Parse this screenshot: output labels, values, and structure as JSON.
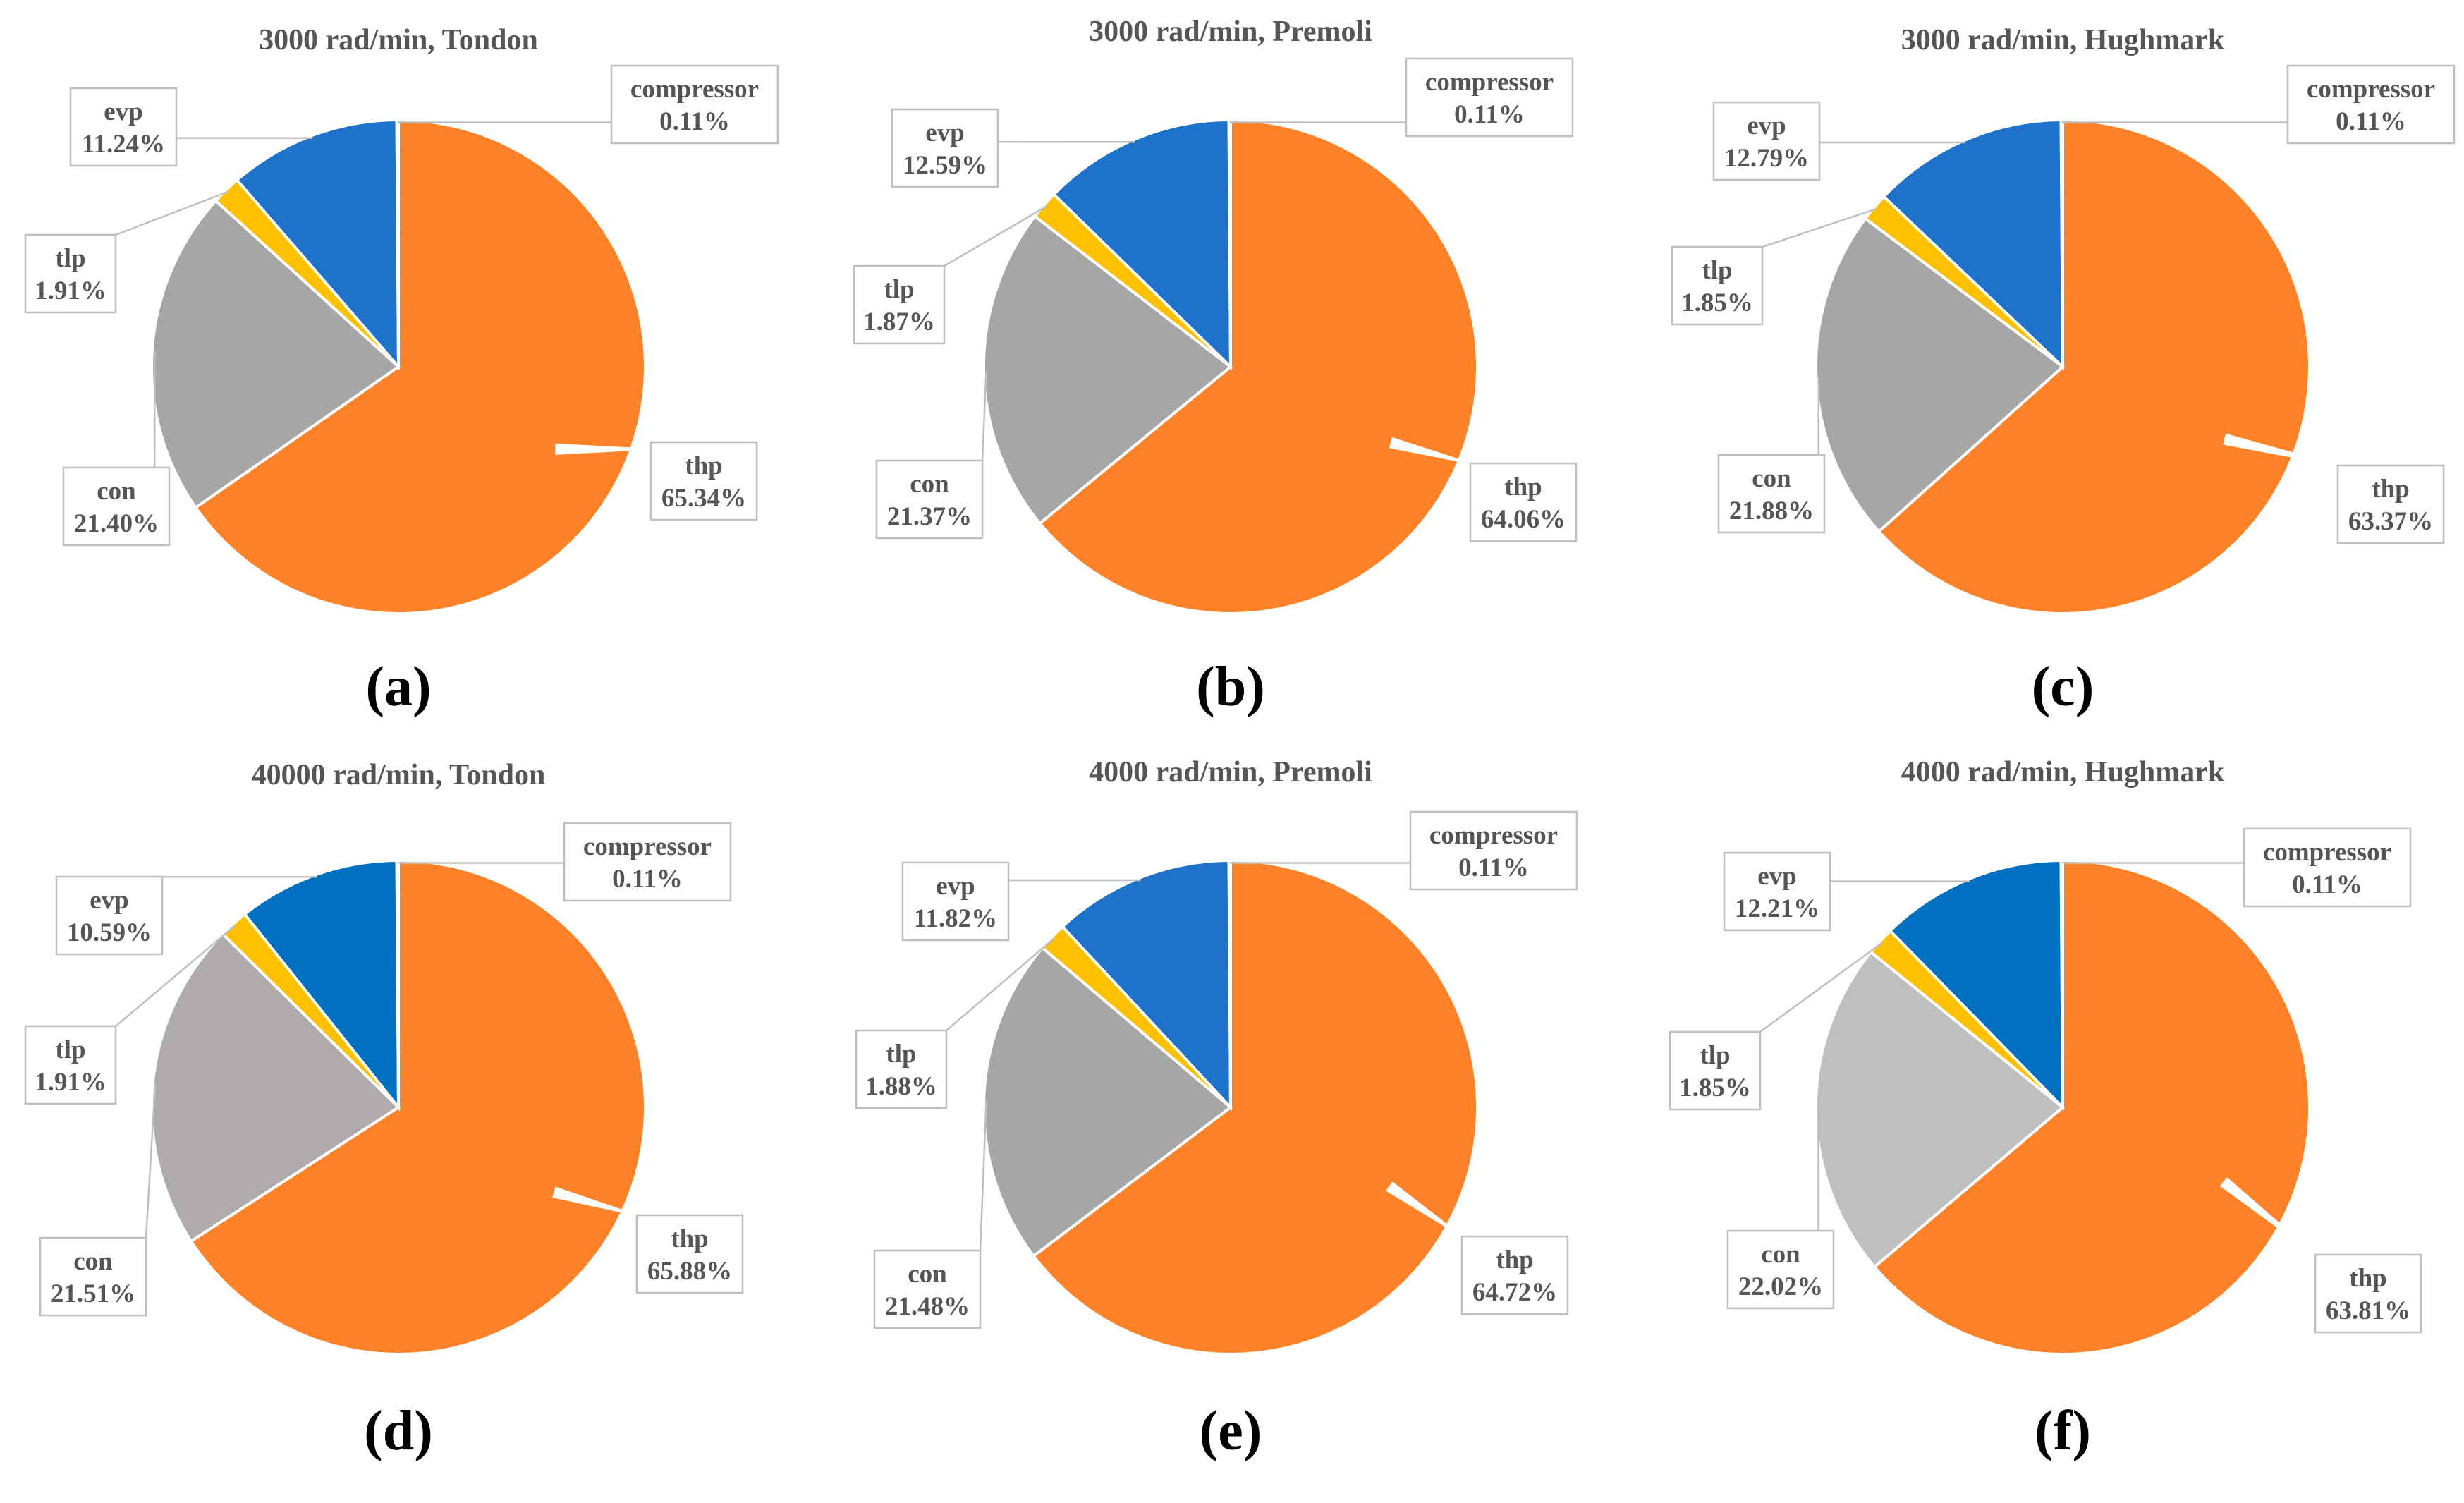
{
  "chart_data": [
    {
      "type": "pie",
      "title": "3000 rad/min, Tondon",
      "panel_label": "(a)",
      "slices": [
        {
          "label": "thp",
          "value": 65.34,
          "display": "65.34%",
          "color": "#FF8228"
        },
        {
          "label": "con",
          "value": 21.4,
          "display": "21.40%",
          "color": "#A6A6A6"
        },
        {
          "label": "tlp",
          "value": 1.91,
          "display": "1.91%",
          "color": "#FFC000"
        },
        {
          "label": "evp",
          "value": 11.24,
          "display": "11.24%",
          "color": "#1F72C9"
        },
        {
          "label": "compressor",
          "value": 0.11,
          "display": "0.11%",
          "color": "#2E5DA8"
        }
      ]
    },
    {
      "type": "pie",
      "title": "3000 rad/min, Premoli",
      "panel_label": "(b)",
      "slices": [
        {
          "label": "thp",
          "value": 64.06,
          "display": "64.06%",
          "color": "#FF8228"
        },
        {
          "label": "con",
          "value": 21.37,
          "display": "21.37%",
          "color": "#A6A6A6"
        },
        {
          "label": "tlp",
          "value": 1.87,
          "display": "1.87%",
          "color": "#FFC000"
        },
        {
          "label": "evp",
          "value": 12.59,
          "display": "12.59%",
          "color": "#1F72C9"
        },
        {
          "label": "compressor",
          "value": 0.11,
          "display": "0.11%",
          "color": "#2E5DA8"
        }
      ]
    },
    {
      "type": "pie",
      "title": "3000 rad/min, Hughmark",
      "panel_label": "(c)",
      "slices": [
        {
          "label": "thp",
          "value": 63.37,
          "display": "63.37%",
          "color": "#FF8228"
        },
        {
          "label": "con",
          "value": 21.88,
          "display": "21.88%",
          "color": "#A6A6A6"
        },
        {
          "label": "tlp",
          "value": 1.85,
          "display": "1.85%",
          "color": "#FFC000"
        },
        {
          "label": "evp",
          "value": 12.79,
          "display": "12.79%",
          "color": "#1F72C9"
        },
        {
          "label": "compressor",
          "value": 0.11,
          "display": "0.11%",
          "color": "#2E5DA8"
        }
      ]
    },
    {
      "type": "pie",
      "title": "40000 rad/min, Tondon",
      "panel_label": "(d)",
      "slices": [
        {
          "label": "thp",
          "value": 65.88,
          "display": "65.88%",
          "color": "#FF8228"
        },
        {
          "label": "con",
          "value": 21.51,
          "display": "21.51%",
          "color": "#AFABAB"
        },
        {
          "label": "tlp",
          "value": 1.91,
          "display": "1.91%",
          "color": "#FFC000"
        },
        {
          "label": "evp",
          "value": 10.59,
          "display": "10.59%",
          "color": "#0070C0"
        },
        {
          "label": "compressor",
          "value": 0.11,
          "display": "0.11%",
          "color": "#2E5DA8"
        }
      ]
    },
    {
      "type": "pie",
      "title": "4000 rad/min, Premoli",
      "panel_label": "(e)",
      "slices": [
        {
          "label": "thp",
          "value": 64.72,
          "display": "64.72%",
          "color": "#FF8228"
        },
        {
          "label": "con",
          "value": 21.48,
          "display": "21.48%",
          "color": "#A6A6A6"
        },
        {
          "label": "tlp",
          "value": 1.88,
          "display": "1.88%",
          "color": "#FFC000"
        },
        {
          "label": "evp",
          "value": 11.82,
          "display": "11.82%",
          "color": "#1F72C9"
        },
        {
          "label": "compressor",
          "value": 0.11,
          "display": "0.11%",
          "color": "#2E5DA8"
        }
      ]
    },
    {
      "type": "pie",
      "title": "4000 rad/min, Hughmark",
      "panel_label": "(f)",
      "slices": [
        {
          "label": "thp",
          "value": 63.81,
          "display": "63.81%",
          "color": "#FF8228"
        },
        {
          "label": "con",
          "value": 22.02,
          "display": "22.02%",
          "color": "#BFBFBF"
        },
        {
          "label": "tlp",
          "value": 1.85,
          "display": "1.85%",
          "color": "#FFC000"
        },
        {
          "label": "evp",
          "value": 12.21,
          "display": "12.21%",
          "color": "#0070C0"
        },
        {
          "label": "compressor",
          "value": 0.11,
          "display": "0.11%",
          "color": "#2E5DA8"
        }
      ]
    }
  ]
}
